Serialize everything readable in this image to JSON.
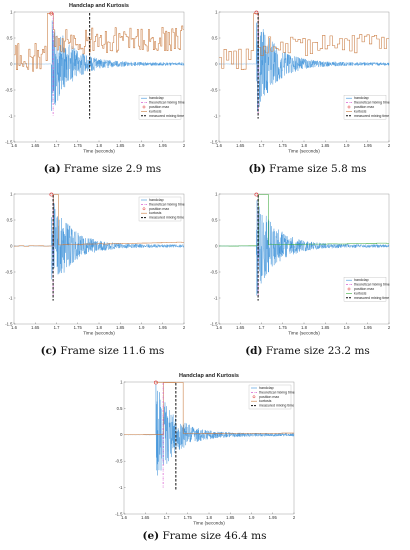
{
  "colors": {
    "handclap": "#3a8fd8",
    "kurtosis": "#c8783c",
    "theoretical": "#d040c8",
    "measured": "#111111",
    "marker": "#e03030",
    "green": "#3caa3c"
  },
  "chart_data": [
    {
      "type": "line",
      "title": "Handclap and Kurtosis",
      "xlabel": "Time (seconds)",
      "ylabel": "",
      "xlim": [
        1.6,
        2.0
      ],
      "ylim": [
        -1.5,
        1.0
      ],
      "xticks": [
        "1.6",
        "1.65",
        "1.7",
        "1.75",
        "1.8",
        "1.85",
        "1.9",
        "1.95",
        "2"
      ],
      "yticks": [
        "-1.5",
        "-1",
        "-0.5",
        "0",
        "0.5",
        "1"
      ],
      "legend": [
        "handclap",
        "theoretical mixing time",
        "position max",
        "kurtosis",
        "measured mixing time"
      ],
      "legend_position": "bottom-right",
      "onset": 1.688,
      "theoretical_mixing_time": 1.692,
      "measured_mixing_time": 1.778,
      "position_max": [
        1.688,
        0.97
      ],
      "frame_size_ms": 2.9,
      "kurtosis_level": 0.45,
      "caption_letter": "(a)",
      "caption_text": "Frame size 2.9 ms"
    },
    {
      "type": "line",
      "title": "",
      "xlabel": "Time (seconds)",
      "ylabel": "",
      "xlim": [
        1.6,
        2.0
      ],
      "ylim": [
        -1.5,
        1.0
      ],
      "xticks": [
        "1.6",
        "1.65",
        "1.7",
        "1.75",
        "1.8",
        "1.85",
        "1.9",
        "1.95",
        "2"
      ],
      "yticks": [
        "-1.5",
        "-1",
        "-0.5",
        "0",
        "0.5",
        "1"
      ],
      "legend": [
        "handclap",
        "theoretical mixing time",
        "position max",
        "kurtosis",
        "measured mixing time"
      ],
      "legend_position": "bottom-right",
      "onset": 1.688,
      "theoretical_mixing_time": 1.692,
      "measured_mixing_time": 1.692,
      "position_max": [
        1.688,
        0.99
      ],
      "frame_size_ms": 5.8,
      "kurtosis_level": 0.35,
      "caption_letter": "(b)",
      "caption_text": "Frame size 5.8 ms"
    },
    {
      "type": "line",
      "title": "",
      "xlabel": "Time (seconds)",
      "ylabel": "",
      "xlim": [
        1.6,
        2.0
      ],
      "ylim": [
        -1.5,
        1.0
      ],
      "xticks": [
        "1.6",
        "1.65",
        "1.7",
        "1.75",
        "1.8",
        "1.85",
        "1.9",
        "1.95",
        "2"
      ],
      "yticks": [
        "-1.5",
        "-1",
        "-0.5",
        "0",
        "0.5",
        "1"
      ],
      "legend": [
        "handclap",
        "theoretical mixing time",
        "position max",
        "kurtosis",
        "measured mixing time"
      ],
      "legend_position": "top-right",
      "onset": 1.688,
      "theoretical_mixing_time": 1.692,
      "measured_mixing_time": 1.692,
      "position_max": [
        1.688,
        0.99
      ],
      "frame_size_ms": 11.6,
      "kurtosis_level": 0.08,
      "caption_letter": "(c)",
      "caption_text": "Frame size 11.6 ms"
    },
    {
      "type": "line",
      "title": "",
      "xlabel": "Time (seconds)",
      "ylabel": "",
      "xlim": [
        1.6,
        2.0
      ],
      "ylim": [
        -1.5,
        1.0
      ],
      "xticks": [
        "1.6",
        "1.65",
        "1.7",
        "1.75",
        "1.8",
        "1.85",
        "1.9",
        "1.95",
        "2"
      ],
      "yticks": [
        "-1.5",
        "-1",
        "-0.5",
        "0",
        "0.5",
        "1"
      ],
      "legend": [
        "handclap",
        "theoretical mixing time",
        "position max",
        "kurtosis",
        "measured mixing time"
      ],
      "legend_position": "bottom-right",
      "onset": 1.688,
      "theoretical_mixing_time": 1.692,
      "measured_mixing_time": 1.692,
      "position_max": [
        1.688,
        0.99
      ],
      "frame_size_ms": 23.2,
      "kurtosis_level": 0.05,
      "caption_letter": "(d)",
      "caption_text": "Frame size 23.2 ms"
    },
    {
      "type": "line",
      "title": "Handclap and Kurtosis",
      "xlabel": "Time (seconds)",
      "ylabel": "",
      "xlim": [
        1.6,
        2.0
      ],
      "ylim": [
        -1.5,
        1.0
      ],
      "xticks": [
        "1.6",
        "1.65",
        "1.7",
        "1.75",
        "1.8",
        "1.85",
        "1.9",
        "1.95",
        "2"
      ],
      "yticks": [
        "-1.5",
        "-1",
        "-0.5",
        "0",
        "0.5",
        "1"
      ],
      "legend": [
        "handclap",
        "theoretical mixing time",
        "position max",
        "kurtosis",
        "measured mixing time"
      ],
      "legend_position": "top-right",
      "onset": 1.675,
      "theoretical_mixing_time": 1.692,
      "measured_mixing_time": 1.722,
      "position_max": [
        1.675,
        0.99
      ],
      "frame_size_ms": 46.4,
      "kurtosis_level": 0.02,
      "caption_letter": "(e)",
      "caption_text": "Frame size 46.4 ms"
    }
  ]
}
